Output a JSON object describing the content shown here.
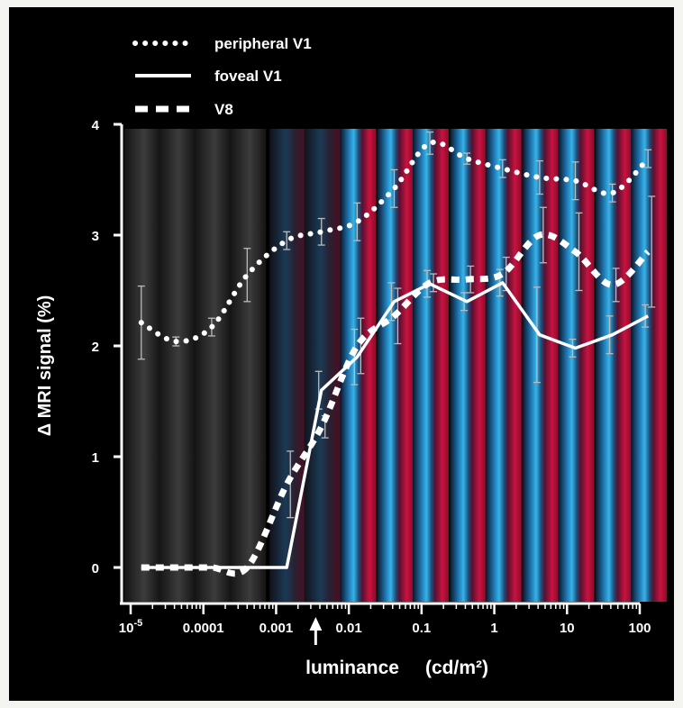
{
  "colors": {
    "background": "#000000",
    "axis": "#ffffff",
    "scotopic_band": "#3a3a3a",
    "band_blue": "#29a8e0",
    "band_red": "#c4123a",
    "band_dark": "#0a1022",
    "line": "#ffffff",
    "errorbar": "#bbbbbb"
  },
  "chart_data": {
    "type": "line",
    "x_scale": "log",
    "xlim": [
      1e-05,
      100
    ],
    "ylim": [
      0,
      4
    ],
    "grid": false,
    "legend_position": "top-left",
    "xlabel": "luminance",
    "xlabel_units": "(cd/m²)",
    "ylabel": "Δ MRI signal (%)",
    "x_ticks": [
      {
        "value": 1e-05,
        "base": "10",
        "exp": "-5"
      },
      {
        "value": 0.0001,
        "label": "0.0001"
      },
      {
        "value": 0.001,
        "label": "0.001"
      },
      {
        "value": 0.01,
        "label": "0.01"
      },
      {
        "value": 0.1,
        "label": "0.1"
      },
      {
        "value": 1,
        "label": "1"
      },
      {
        "value": 10,
        "label": "10"
      },
      {
        "value": 100,
        "label": "100"
      }
    ],
    "y_ticks": [
      0,
      1,
      2,
      3,
      4
    ],
    "arrow_marker_x": 0.0035,
    "series": [
      {
        "name": "peripheral V1",
        "style": "dotted",
        "points": [
          {
            "x": 1.4e-05,
            "y": 2.21,
            "err": 0.33
          },
          {
            "x": 4.2e-05,
            "y": 2.04,
            "err": 0.04
          },
          {
            "x": 0.00013,
            "y": 2.17,
            "err": 0.08
          },
          {
            "x": 0.0004,
            "y": 2.64,
            "err": 0.24
          },
          {
            "x": 0.0014,
            "y": 2.95,
            "err": 0.08
          },
          {
            "x": 0.0042,
            "y": 3.03,
            "err": 0.12
          },
          {
            "x": 0.013,
            "y": 3.12,
            "err": 0.17
          },
          {
            "x": 0.042,
            "y": 3.42,
            "err": 0.17
          },
          {
            "x": 0.13,
            "y": 3.83,
            "err": 0.1
          },
          {
            "x": 0.42,
            "y": 3.69,
            "err": 0.05
          },
          {
            "x": 1.3,
            "y": 3.6,
            "err": 0.08
          },
          {
            "x": 4.2,
            "y": 3.52,
            "err": 0.15
          },
          {
            "x": 13,
            "y": 3.49,
            "err": 0.17
          },
          {
            "x": 42,
            "y": 3.38,
            "err": 0.08
          },
          {
            "x": 130,
            "y": 3.69,
            "err": 0.08
          }
        ]
      },
      {
        "name": "foveal V1",
        "style": "solid",
        "points": [
          {
            "x": 1.4e-05,
            "y": 0.0,
            "err": 0
          },
          {
            "x": 4.2e-05,
            "y": 0.0,
            "err": 0
          },
          {
            "x": 0.00013,
            "y": 0.0,
            "err": 0
          },
          {
            "x": 0.0004,
            "y": 0.0,
            "err": 0
          },
          {
            "x": 0.0014,
            "y": 0.0,
            "err": 0
          },
          {
            "x": 0.0042,
            "y": 1.6,
            "err": 0.17
          },
          {
            "x": 0.013,
            "y": 1.9,
            "err": 0.25
          },
          {
            "x": 0.042,
            "y": 2.4,
            "err": 0.17
          },
          {
            "x": 0.13,
            "y": 2.56,
            "err": 0.12
          },
          {
            "x": 0.42,
            "y": 2.4,
            "err": 0.08
          },
          {
            "x": 1.3,
            "y": 2.57,
            "err": 0.12
          },
          {
            "x": 4.2,
            "y": 2.1,
            "err": 0.43
          },
          {
            "x": 13,
            "y": 1.98,
            "err": 0.08
          },
          {
            "x": 42,
            "y": 2.1,
            "err": 0.17
          },
          {
            "x": 130,
            "y": 2.27,
            "err": 0.1
          }
        ]
      },
      {
        "name": "V8",
        "style": "dashed",
        "points": [
          {
            "x": 1.4e-05,
            "y": 0.0,
            "err": 0
          },
          {
            "x": 4.2e-05,
            "y": 0.0,
            "err": 0
          },
          {
            "x": 0.00013,
            "y": 0.0,
            "err": 0
          },
          {
            "x": 0.0004,
            "y": 0.0,
            "err": 0
          },
          {
            "x": 0.0014,
            "y": 0.75,
            "err": 0.3
          },
          {
            "x": 0.0042,
            "y": 1.27,
            "err": 0.1
          },
          {
            "x": 0.013,
            "y": 2.0,
            "err": 0.25
          },
          {
            "x": 0.042,
            "y": 2.27,
            "err": 0.25
          },
          {
            "x": 0.13,
            "y": 2.57,
            "err": 0.08
          },
          {
            "x": 0.42,
            "y": 2.6,
            "err": 0.12
          },
          {
            "x": 1.3,
            "y": 2.65,
            "err": 0.15
          },
          {
            "x": 4.2,
            "y": 3.0,
            "err": 0.25
          },
          {
            "x": 13,
            "y": 2.85,
            "err": 0.35
          },
          {
            "x": 42,
            "y": 2.55,
            "err": 0.15
          },
          {
            "x": 130,
            "y": 2.85,
            "err": 0.5
          }
        ]
      }
    ]
  }
}
